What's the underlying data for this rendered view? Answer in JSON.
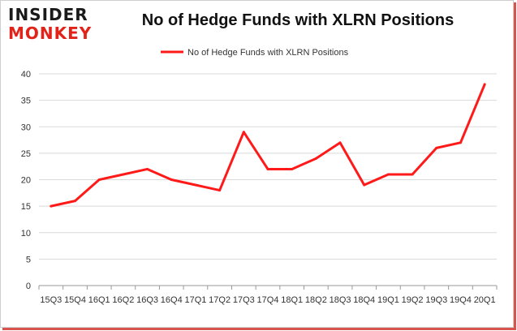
{
  "logo": {
    "line1": "INSIDER",
    "line2": "MONKEY"
  },
  "colors": {
    "series": "#ff1a1a",
    "grid": "#d9d9d9",
    "axis": "#999999",
    "brand_red": "#e2231a"
  },
  "chart_data": {
    "type": "line",
    "title": "No of Hedge Funds with XLRN Positions",
    "xlabel": "",
    "ylabel": "",
    "categories": [
      "15Q3",
      "15Q4",
      "16Q1",
      "16Q2",
      "16Q3",
      "16Q4",
      "17Q1",
      "17Q2",
      "17Q3",
      "17Q4",
      "18Q1",
      "18Q2",
      "18Q3",
      "18Q4",
      "19Q1",
      "19Q2",
      "19Q3",
      "19Q4",
      "20Q1"
    ],
    "series": [
      {
        "name": "No of Hedge Funds with XLRN Positions",
        "values": [
          15,
          16,
          20,
          21,
          22,
          20,
          19,
          18,
          29,
          22,
          22,
          24,
          27,
          19,
          21,
          21,
          26,
          27,
          38
        ]
      }
    ],
    "ylim": [
      0,
      40
    ],
    "yticks": [
      0,
      5,
      10,
      15,
      20,
      25,
      30,
      35,
      40
    ],
    "grid": true,
    "legend": "top-center"
  }
}
